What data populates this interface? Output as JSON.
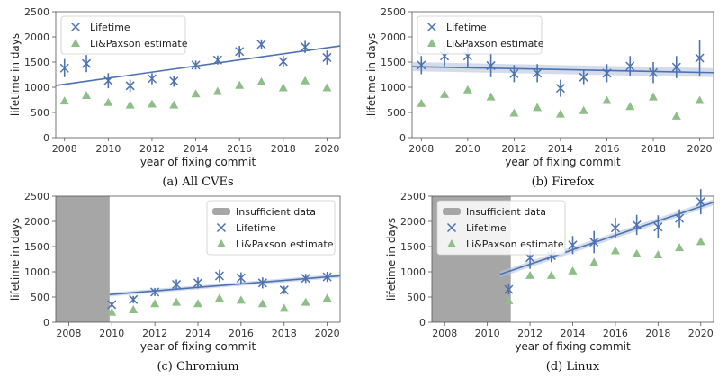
{
  "colors": {
    "lifetime": "#4c72b0",
    "estimate": "#8fbf88",
    "insufficient": "#a6a6a6",
    "band": "#b7c4e0"
  },
  "chart_data": [
    {
      "type": "scatter",
      "caption": "(a) All CVEs",
      "xlabel": "year of fixing commit",
      "ylabel": "lifetime in days",
      "xlim": [
        2007.6,
        2020.6
      ],
      "ylim": [
        0,
        2500
      ],
      "xticks": [
        "2008",
        "2010",
        "2012",
        "2014",
        "2016",
        "2018",
        "2020"
      ],
      "yticks": [
        "0",
        "500",
        "1000",
        "1500",
        "2000",
        "2500"
      ],
      "legend": {
        "position": "top-left",
        "entries": [
          "Lifetime",
          "Li&Paxson estimate"
        ]
      },
      "insufficient_until": null,
      "trend": {
        "x": [
          2007.6,
          2020.6
        ],
        "y": [
          1035,
          1820
        ],
        "band": 0
      },
      "series": [
        {
          "name": "Lifetime",
          "x": [
            2008,
            2009,
            2010,
            2011,
            2012,
            2013,
            2014,
            2015,
            2016,
            2017,
            2018,
            2019,
            2020
          ],
          "y": [
            1380,
            1470,
            1130,
            1030,
            1170,
            1120,
            1440,
            1540,
            1710,
            1850,
            1510,
            1800,
            1590
          ],
          "err": [
            180,
            170,
            150,
            120,
            110,
            110,
            90,
            90,
            110,
            100,
            120,
            120,
            140
          ]
        },
        {
          "name": "Li&Paxson estimate",
          "x": [
            2008,
            2009,
            2010,
            2011,
            2012,
            2013,
            2014,
            2015,
            2016,
            2017,
            2018,
            2019,
            2020
          ],
          "y": [
            730,
            840,
            700,
            650,
            670,
            650,
            870,
            920,
            1040,
            1110,
            990,
            1130,
            990
          ]
        }
      ]
    },
    {
      "type": "scatter",
      "caption": "(b) Firefox",
      "xlabel": "year of fixing commit",
      "ylabel": "lifetime in days",
      "xlim": [
        2007.6,
        2020.6
      ],
      "ylim": [
        0,
        2500
      ],
      "xticks": [
        "2008",
        "2010",
        "2012",
        "2014",
        "2016",
        "2018",
        "2020"
      ],
      "yticks": [
        "0",
        "500",
        "1000",
        "1500",
        "2000",
        "2500"
      ],
      "legend": {
        "position": "top-left",
        "entries": [
          "Lifetime",
          "Li&Paxson estimate"
        ]
      },
      "insufficient_until": null,
      "trend": {
        "x": [
          2007.6,
          2020.6
        ],
        "y": [
          1410,
          1290
        ],
        "band": 90
      },
      "series": [
        {
          "name": "Lifetime",
          "x": [
            2008,
            2009,
            2010,
            2011,
            2012,
            2013,
            2014,
            2015,
            2016,
            2017,
            2018,
            2019,
            2020
          ],
          "y": [
            1440,
            1620,
            1620,
            1430,
            1270,
            1280,
            980,
            1200,
            1280,
            1420,
            1290,
            1400,
            1580
          ],
          "err": [
            180,
            200,
            230,
            230,
            170,
            180,
            170,
            140,
            180,
            200,
            210,
            220,
            350
          ]
        },
        {
          "name": "Li&Paxson estimate",
          "x": [
            2008,
            2009,
            2010,
            2011,
            2012,
            2013,
            2014,
            2015,
            2016,
            2017,
            2018,
            2019,
            2020
          ],
          "y": [
            680,
            860,
            950,
            810,
            490,
            600,
            470,
            540,
            740,
            620,
            810,
            430,
            740
          ]
        }
      ]
    },
    {
      "type": "scatter",
      "caption": "(c) Chromium",
      "xlabel": "year of fixing commit",
      "ylabel": "lifetime in days",
      "xlim": [
        2007.4,
        2020.6
      ],
      "ylim": [
        0,
        2500
      ],
      "xticks": [
        "2008",
        "2010",
        "2012",
        "2014",
        "2016",
        "2018",
        "2020"
      ],
      "yticks": [
        "0",
        "500",
        "1000",
        "1500",
        "2000",
        "2500"
      ],
      "legend": {
        "position": "top-right",
        "entries": [
          "Insufficient data",
          "Lifetime",
          "Li&Paxson estimate"
        ]
      },
      "insufficient_until": 2009.9,
      "trend": {
        "x": [
          2009.9,
          2020.6
        ],
        "y": [
          550,
          920
        ],
        "band": 40
      },
      "series": [
        {
          "name": "Lifetime",
          "x": [
            2010,
            2011,
            2012,
            2013,
            2014,
            2015,
            2016,
            2017,
            2018,
            2019,
            2020
          ],
          "y": [
            350,
            450,
            600,
            750,
            780,
            920,
            880,
            780,
            640,
            870,
            900
          ],
          "err": [
            50,
            70,
            80,
            100,
            110,
            120,
            110,
            110,
            80,
            90,
            100
          ]
        },
        {
          "name": "Li&Paxson estimate",
          "x": [
            2010,
            2011,
            2012,
            2013,
            2014,
            2015,
            2016,
            2017,
            2018,
            2019,
            2020
          ],
          "y": [
            200,
            250,
            370,
            400,
            370,
            480,
            440,
            370,
            280,
            400,
            480
          ]
        }
      ]
    },
    {
      "type": "scatter",
      "caption": "(d) Linux",
      "xlabel": "year of fixing commit",
      "ylabel": "lifetime in days",
      "xlim": [
        2007.4,
        2020.6
      ],
      "ylim": [
        0,
        2500
      ],
      "xticks": [
        "2008",
        "2010",
        "2012",
        "2014",
        "2016",
        "2018",
        "2020"
      ],
      "yticks": [
        "0",
        "500",
        "1000",
        "1500",
        "2000",
        "2500"
      ],
      "legend": {
        "position": "top-left",
        "entries": [
          "Insufficient data",
          "Lifetime",
          "Li&Paxson estimate"
        ]
      },
      "insufficient_until": 2011.1,
      "trend": {
        "x": [
          2010.6,
          2020.6
        ],
        "y": [
          950,
          2380
        ],
        "band": 60
      },
      "series": [
        {
          "name": "Lifetime",
          "x": [
            2011,
            2012,
            2013,
            2014,
            2015,
            2016,
            2017,
            2018,
            2019,
            2020
          ],
          "y": [
            650,
            1280,
            1320,
            1530,
            1590,
            1870,
            1930,
            1890,
            2060,
            2390
          ],
          "err": [
            100,
            220,
            130,
            180,
            220,
            200,
            200,
            230,
            180,
            250
          ]
        },
        {
          "name": "Li&Paxson estimate",
          "x": [
            2011,
            2012,
            2013,
            2014,
            2015,
            2016,
            2017,
            2018,
            2019,
            2020
          ],
          "y": [
            430,
            930,
            930,
            1020,
            1190,
            1420,
            1360,
            1340,
            1480,
            1600
          ]
        }
      ]
    }
  ]
}
